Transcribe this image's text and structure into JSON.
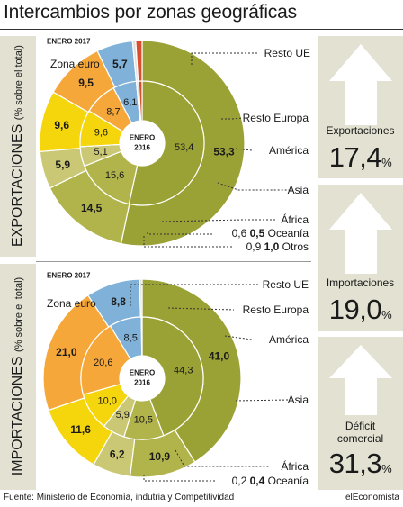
{
  "title": "Intercambios por zonas geográficas",
  "footer": {
    "source": "Fuente: Ministerio de Economía, indutria y Competitividad",
    "brand": "elEconomista"
  },
  "colors": {
    "zona_euro": "#9ba235",
    "resto_ue": "#b1b44a",
    "resto_europa": "#cbc875",
    "america": "#f5d50b",
    "asia": "#f5a73a",
    "africa": "#80b1d9",
    "oceania": "#e0e0e0",
    "otros": "#d94f2e",
    "panel": "#e2e1d2"
  },
  "chart_data": [
    {
      "type": "pie",
      "label": "EXPORTACIONES",
      "label_sub": "(% sobre el total)",
      "period": "ENERO 2017",
      "center_label": [
        "ENERO",
        "2016"
      ],
      "categories": [
        "Zona euro",
        "Resto UE",
        "Resto Europa",
        "América",
        "Asia",
        "África",
        "Oceanía",
        "Otros"
      ],
      "series": [
        {
          "period": "ENERO 2017",
          "ring": "outer",
          "values": [
            53.3,
            14.5,
            5.9,
            9.6,
            9.5,
            5.7,
            0.5,
            1.0
          ]
        },
        {
          "period": "ENERO 2016",
          "ring": "inner",
          "values": [
            53.4,
            15.6,
            5.1,
            9.6,
            8.7,
            6.1,
            0.6,
            0.9
          ]
        }
      ],
      "outer_labels": [
        "53,3",
        "14,5",
        "5,9",
        "9,6",
        "9,5",
        "5,7",
        "0,5",
        "1,0"
      ],
      "inner_labels": [
        "53,4",
        "15,6",
        "5,1",
        "9,6",
        "8,7",
        "6,1",
        "0,6",
        "0,9"
      ],
      "legend": [
        "Zona euro",
        "Resto UE",
        "Resto Europa",
        "América",
        "Asia",
        "África",
        "Oceanía",
        "Otros"
      ]
    },
    {
      "type": "pie",
      "label": "IMPORTACIONES",
      "label_sub": "(% sobre el total)",
      "period": "ENERO 2017",
      "center_label": [
        "ENERO",
        "2016"
      ],
      "categories": [
        "Zona euro",
        "Resto UE",
        "Resto Europa",
        "América",
        "Asia",
        "África",
        "Oceanía"
      ],
      "series": [
        {
          "period": "ENERO 2017",
          "ring": "outer",
          "values": [
            41.0,
            10.9,
            6.2,
            11.6,
            21.0,
            8.8,
            0.4
          ]
        },
        {
          "period": "ENERO 2016",
          "ring": "inner",
          "values": [
            44.3,
            10.5,
            5.9,
            10.0,
            20.6,
            8.5,
            0.2
          ]
        }
      ],
      "outer_labels": [
        "41,0",
        "10,9",
        "6,2",
        "11,6",
        "21,0",
        "8,8",
        "0,4"
      ],
      "inner_labels": [
        "44,3",
        "10,5",
        "5,9",
        "10,0",
        "20,6",
        "8,5",
        "0,2"
      ],
      "legend": [
        "Zona euro",
        "Resto UE",
        "Resto Europa",
        "América",
        "Asia",
        "África",
        "Oceanía"
      ]
    }
  ],
  "kpis": [
    {
      "label": [
        "Exportaciones"
      ],
      "value": "17,4",
      "unit": "%"
    },
    {
      "label": [
        "Importaciones"
      ],
      "value": "19,0",
      "unit": "%"
    },
    {
      "label": [
        "Déficit",
        "comercial"
      ],
      "value": "31,3",
      "unit": "%"
    }
  ]
}
